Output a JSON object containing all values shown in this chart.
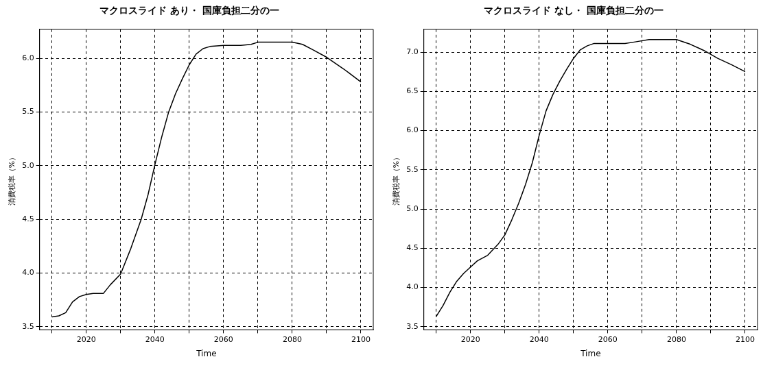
{
  "chart_data": [
    {
      "type": "line",
      "title": "マクロスライド あり・ 国庫負担二分の一",
      "xlabel": "Time",
      "ylabel": "消費税率（%）",
      "grid": true,
      "legend": false,
      "marker": "none",
      "line_style": "solid",
      "xlim": [
        2006.4,
        2103.6
      ],
      "ylim": [
        3.47,
        6.27
      ],
      "xticks": [
        {
          "value": 2010,
          "label": null
        },
        2020,
        {
          "value": 2030,
          "label": null
        },
        2040,
        {
          "value": 2050,
          "label": null
        },
        2060,
        {
          "value": 2070,
          "label": null
        },
        2080,
        {
          "value": 2090,
          "label": null
        },
        2100
      ],
      "yticks": [
        3.5,
        {
          "value": 4,
          "label": "4.0"
        },
        4.5,
        {
          "value": 5,
          "label": "5.0"
        },
        5.5,
        {
          "value": 6,
          "label": "6.0"
        }
      ],
      "series": [
        {
          "color": "#000000",
          "x": [
            2010,
            2012,
            2014,
            2016,
            2018,
            2020,
            2022,
            2025,
            2027,
            2030,
            2033,
            2036,
            2038,
            2040,
            2042,
            2044,
            2046,
            2048,
            2050,
            2052,
            2054,
            2056,
            2060,
            2065,
            2068,
            2070,
            2075,
            2080,
            2083,
            2086,
            2090,
            2095,
            2100
          ],
          "values": [
            3.59,
            3.6,
            3.63,
            3.73,
            3.78,
            3.8,
            3.81,
            3.81,
            3.89,
            3.99,
            4.23,
            4.5,
            4.73,
            5.01,
            5.27,
            5.5,
            5.67,
            5.81,
            5.94,
            6.04,
            6.09,
            6.11,
            6.12,
            6.12,
            6.13,
            6.15,
            6.15,
            6.15,
            6.13,
            6.08,
            6.01,
            5.9,
            5.78
          ]
        }
      ]
    },
    {
      "type": "line",
      "title": "マクロスライド なし・ 国庫負担二分の一",
      "xlabel": "Time",
      "ylabel": "消費税率（%）",
      "grid": true,
      "legend": false,
      "marker": "none",
      "line_style": "solid",
      "xlim": [
        2006.4,
        2103.6
      ],
      "ylim": [
        3.46,
        7.29
      ],
      "xticks": [
        {
          "value": 2010,
          "label": null
        },
        2020,
        {
          "value": 2030,
          "label": null
        },
        2040,
        {
          "value": 2050,
          "label": null
        },
        2060,
        {
          "value": 2070,
          "label": null
        },
        2080,
        {
          "value": 2090,
          "label": null
        },
        2100
      ],
      "yticks": [
        3.5,
        {
          "value": 4,
          "label": "4.0"
        },
        4.5,
        {
          "value": 5,
          "label": "5.0"
        },
        5.5,
        {
          "value": 6,
          "label": "6.0"
        },
        6.5,
        {
          "value": 7,
          "label": "7.0"
        }
      ],
      "series": [
        {
          "color": "#000000",
          "x": [
            2010,
            2012,
            2014,
            2016,
            2018,
            2020,
            2022,
            2025,
            2028,
            2030,
            2032,
            2034,
            2036,
            2038,
            2040,
            2042,
            2044,
            2046,
            2048,
            2050,
            2052,
            2054,
            2056,
            2060,
            2065,
            2068,
            2072,
            2080,
            2084,
            2088,
            2092,
            2096,
            2100
          ],
          "values": [
            3.63,
            3.77,
            3.94,
            4.08,
            4.18,
            4.26,
            4.34,
            4.41,
            4.55,
            4.67,
            4.86,
            5.07,
            5.31,
            5.59,
            5.94,
            6.25,
            6.46,
            6.63,
            6.78,
            6.92,
            7.03,
            7.08,
            7.11,
            7.11,
            7.11,
            7.13,
            7.16,
            7.16,
            7.1,
            7.02,
            6.92,
            6.84,
            6.75
          ]
        }
      ]
    }
  ]
}
